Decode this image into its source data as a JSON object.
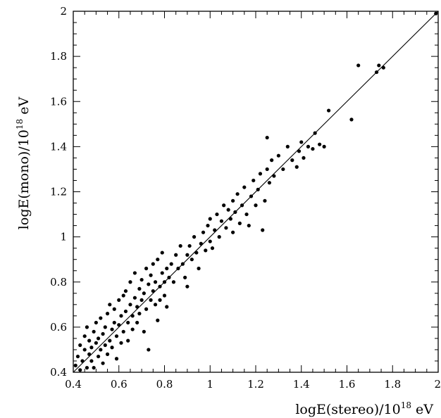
{
  "chart_data": {
    "type": "scatter",
    "xlabel": {
      "pre": "logE(stereo)/10",
      "sup": "18",
      "post": " eV"
    },
    "ylabel": {
      "pre": "logE(mono)/10",
      "sup": "18",
      "post": " eV"
    },
    "xlim": [
      0.4,
      2.0
    ],
    "ylim": [
      0.4,
      2.0
    ],
    "xticks": [
      "0.4",
      "0.6",
      "0.8",
      "1",
      "1.2",
      "1.4",
      "1.6",
      "1.8",
      "2"
    ],
    "yticks": [
      "0.4",
      "0.6",
      "0.8",
      "1",
      "1.2",
      "1.4",
      "1.6",
      "1.8",
      "2"
    ],
    "reference_line": {
      "x": [
        0.4,
        2.0
      ],
      "y": [
        0.4,
        2.0
      ]
    },
    "grid": false,
    "points": [
      [
        0.41,
        0.43
      ],
      [
        0.42,
        0.47
      ],
      [
        0.43,
        0.41
      ],
      [
        0.43,
        0.52
      ],
      [
        0.44,
        0.45
      ],
      [
        0.45,
        0.56
      ],
      [
        0.45,
        0.5
      ],
      [
        0.46,
        0.42
      ],
      [
        0.46,
        0.6
      ],
      [
        0.47,
        0.54
      ],
      [
        0.47,
        0.48
      ],
      [
        0.48,
        0.51
      ],
      [
        0.48,
        0.45
      ],
      [
        0.49,
        0.58
      ],
      [
        0.49,
        0.42
      ],
      [
        0.5,
        0.53
      ],
      [
        0.5,
        0.62
      ],
      [
        0.51,
        0.47
      ],
      [
        0.51,
        0.55
      ],
      [
        0.52,
        0.5
      ],
      [
        0.52,
        0.64
      ],
      [
        0.53,
        0.57
      ],
      [
        0.53,
        0.44
      ],
      [
        0.54,
        0.52
      ],
      [
        0.54,
        0.6
      ],
      [
        0.55,
        0.48
      ],
      [
        0.55,
        0.66
      ],
      [
        0.56,
        0.54
      ],
      [
        0.56,
        0.7
      ],
      [
        0.57,
        0.59
      ],
      [
        0.57,
        0.51
      ],
      [
        0.58,
        0.62
      ],
      [
        0.58,
        0.68
      ],
      [
        0.59,
        0.56
      ],
      [
        0.59,
        0.46
      ],
      [
        0.6,
        0.72
      ],
      [
        0.6,
        0.61
      ],
      [
        0.61,
        0.65
      ],
      [
        0.61,
        0.53
      ],
      [
        0.62,
        0.74
      ],
      [
        0.62,
        0.58
      ],
      [
        0.63,
        0.67
      ],
      [
        0.63,
        0.76
      ],
      [
        0.64,
        0.62
      ],
      [
        0.64,
        0.54
      ],
      [
        0.65,
        0.7
      ],
      [
        0.65,
        0.8
      ],
      [
        0.66,
        0.65
      ],
      [
        0.66,
        0.59
      ],
      [
        0.67,
        0.73
      ],
      [
        0.67,
        0.84
      ],
      [
        0.68,
        0.69
      ],
      [
        0.68,
        0.62
      ],
      [
        0.69,
        0.77
      ],
      [
        0.69,
        0.66
      ],
      [
        0.7,
        0.81
      ],
      [
        0.7,
        0.72
      ],
      [
        0.71,
        0.58
      ],
      [
        0.71,
        0.75
      ],
      [
        0.72,
        0.86
      ],
      [
        0.72,
        0.68
      ],
      [
        0.73,
        0.79
      ],
      [
        0.73,
        0.5
      ],
      [
        0.74,
        0.72
      ],
      [
        0.74,
        0.83
      ],
      [
        0.75,
        0.76
      ],
      [
        0.75,
        0.88
      ],
      [
        0.76,
        0.7
      ],
      [
        0.76,
        0.8
      ],
      [
        0.77,
        0.63
      ],
      [
        0.77,
        0.9
      ],
      [
        0.78,
        0.78
      ],
      [
        0.78,
        0.72
      ],
      [
        0.79,
        0.84
      ],
      [
        0.79,
        0.93
      ],
      [
        0.8,
        0.8
      ],
      [
        0.8,
        0.74
      ],
      [
        0.81,
        0.86
      ],
      [
        0.81,
        0.69
      ],
      [
        0.82,
        0.82
      ],
      [
        0.83,
        0.88
      ],
      [
        0.84,
        0.8
      ],
      [
        0.85,
        0.92
      ],
      [
        0.86,
        0.86
      ],
      [
        0.87,
        0.96
      ],
      [
        0.88,
        0.88
      ],
      [
        0.89,
        0.82
      ],
      [
        0.9,
        0.92
      ],
      [
        0.9,
        0.78
      ],
      [
        0.91,
        0.96
      ],
      [
        0.92,
        0.9
      ],
      [
        0.93,
        1.0
      ],
      [
        0.94,
        0.93
      ],
      [
        0.95,
        0.86
      ],
      [
        0.96,
        0.97
      ],
      [
        0.97,
        1.02
      ],
      [
        0.98,
        0.94
      ],
      [
        0.99,
        1.05
      ],
      [
        1.0,
        0.98
      ],
      [
        1.0,
        1.08
      ],
      [
        1.01,
        0.95
      ],
      [
        1.02,
        1.03
      ],
      [
        1.03,
        1.1
      ],
      [
        1.04,
        1.0
      ],
      [
        1.05,
        1.07
      ],
      [
        1.06,
        1.14
      ],
      [
        1.07,
        1.04
      ],
      [
        1.08,
        1.12
      ],
      [
        1.09,
        1.08
      ],
      [
        1.1,
        1.16
      ],
      [
        1.1,
        1.02
      ],
      [
        1.11,
        1.11
      ],
      [
        1.12,
        1.19
      ],
      [
        1.13,
        1.06
      ],
      [
        1.14,
        1.14
      ],
      [
        1.15,
        1.22
      ],
      [
        1.16,
        1.1
      ],
      [
        1.17,
        1.05
      ],
      [
        1.18,
        1.18
      ],
      [
        1.19,
        1.25
      ],
      [
        1.2,
        1.14
      ],
      [
        1.21,
        1.21
      ],
      [
        1.22,
        1.28
      ],
      [
        1.23,
        1.03
      ],
      [
        1.24,
        1.16
      ],
      [
        1.25,
        1.3
      ],
      [
        1.25,
        1.44
      ],
      [
        1.26,
        1.24
      ],
      [
        1.27,
        1.34
      ],
      [
        1.28,
        1.27
      ],
      [
        1.3,
        1.36
      ],
      [
        1.32,
        1.3
      ],
      [
        1.34,
        1.4
      ],
      [
        1.36,
        1.34
      ],
      [
        1.38,
        1.31
      ],
      [
        1.39,
        1.38
      ],
      [
        1.4,
        1.42
      ],
      [
        1.41,
        1.35
      ],
      [
        1.43,
        1.4
      ],
      [
        1.45,
        1.39
      ],
      [
        1.46,
        1.46
      ],
      [
        1.48,
        1.41
      ],
      [
        1.5,
        1.4
      ],
      [
        1.52,
        1.56
      ],
      [
        1.62,
        1.52
      ],
      [
        1.65,
        1.76
      ],
      [
        1.73,
        1.73
      ],
      [
        1.74,
        1.76
      ],
      [
        1.76,
        1.75
      ],
      [
        1.99,
        1.99
      ]
    ]
  }
}
